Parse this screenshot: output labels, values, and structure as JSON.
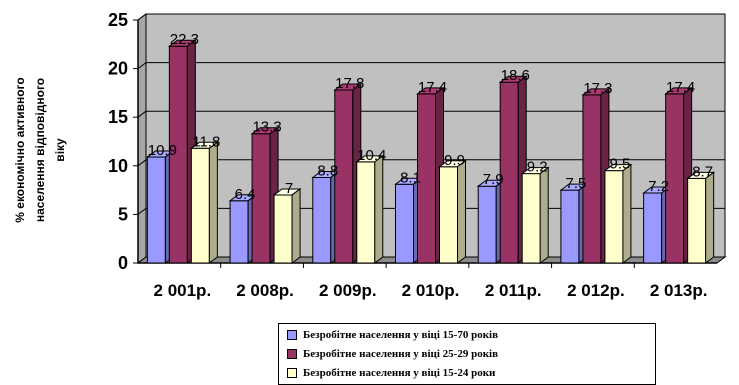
{
  "chart_data": {
    "type": "bar",
    "categories": [
      "2 001р.",
      "2 008р.",
      "2 009р.",
      "2 010р.",
      "2 011р.",
      "2 012р.",
      "2 013р."
    ],
    "series": [
      {
        "name": "Безробітне населення у віці 15-70 років",
        "values": [
          10.9,
          6.4,
          8.8,
          8.1,
          7.9,
          7.5,
          7.2
        ],
        "labels": [
          "10.9",
          "6.4",
          "8.8",
          "8.1",
          "7.9",
          "7.5",
          "7.2"
        ],
        "color": "#9999ff"
      },
      {
        "name": "Безробітне населення у віці 25-29 років",
        "values": [
          22.3,
          13.3,
          17.8,
          17.4,
          18.6,
          17.3,
          17.4
        ],
        "labels": [
          "22.3",
          "13.3",
          "17.8",
          "17.4",
          "18.6",
          "17.3",
          "17.4"
        ],
        "color": "#993366"
      },
      {
        "name": "Безробітне населення у віці 15-24 роки",
        "values": [
          11.8,
          7,
          10.4,
          9.9,
          9.2,
          9.5,
          8.7
        ],
        "labels": [
          "11.8",
          "7",
          "10.4",
          "9.9",
          "9.2",
          "9.5",
          "8.7"
        ],
        "color": "#ffffcc"
      }
    ],
    "y_ticks": [
      "0",
      "5",
      "10",
      "15",
      "20",
      "25"
    ],
    "ylim": [
      0,
      25
    ],
    "ylabel_lines": [
      "% економічно активного",
      "населення відповідного",
      "віку"
    ],
    "grid": true,
    "legend_position": "bottom",
    "plot_background": "#c0c0c0"
  }
}
